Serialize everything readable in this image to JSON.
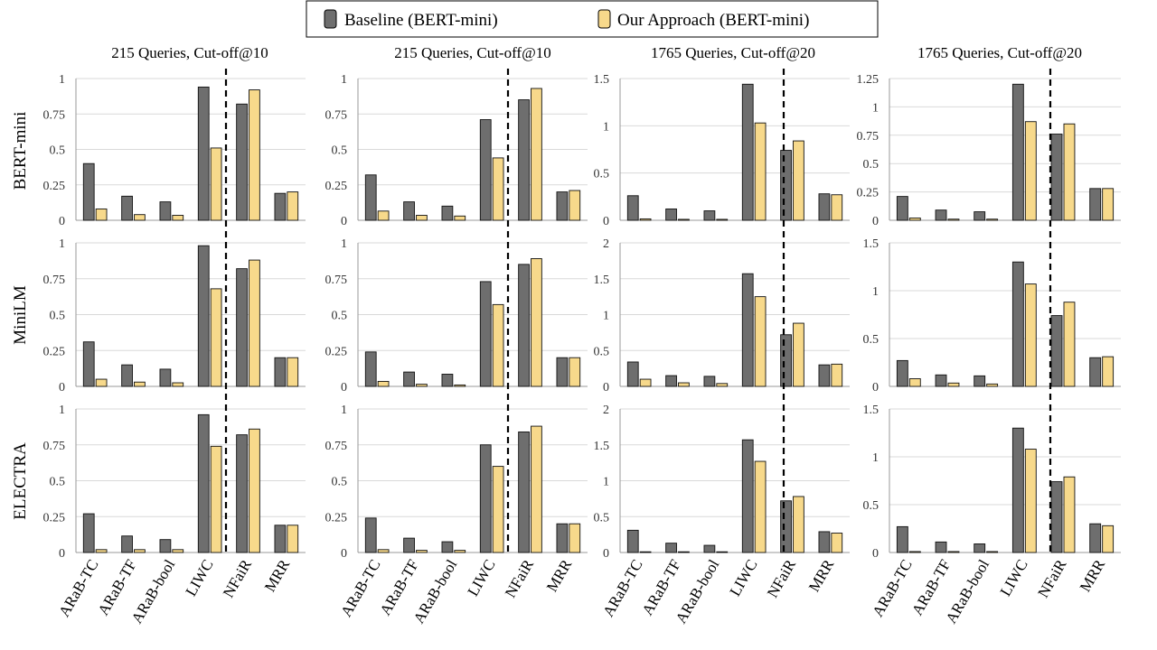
{
  "legend": {
    "items": [
      {
        "label": "Baseline (BERT-mini)",
        "color": "#6e6e6e"
      },
      {
        "label": "Our Approach (BERT-mini)",
        "color": "#f7d98b"
      }
    ]
  },
  "categories": [
    "ARaB-TC",
    "ARaB-TF",
    "ARaB-bool",
    "LIWC",
    "NFaiR",
    "MRR"
  ],
  "column_titles": [
    "215 Queries, Cut-off@10",
    "215 Queries, Cut-off@10",
    "1765 Queries, Cut-off@20",
    "1765 Queries, Cut-off@20"
  ],
  "row_labels": [
    "BERT-mini",
    "MiniLM",
    "ELECTRA"
  ],
  "colors": {
    "baseline": "#6e6e6e",
    "ours": "#f7d98b",
    "grid": "#d9d9d9",
    "axis": "#999999"
  },
  "chart_data": [
    {
      "type": "bar",
      "row": "BERT-mini",
      "column": "215 Queries, Cut-off@10",
      "ylim": [
        0,
        1
      ],
      "yticks": [
        "0",
        "0.25",
        "0.5",
        "0.75",
        "1"
      ],
      "series": [
        {
          "name": "Baseline (BERT-mini)",
          "values": [
            0.4,
            0.17,
            0.13,
            0.94,
            0.82,
            0.19
          ]
        },
        {
          "name": "Our Approach (BERT-mini)",
          "values": [
            0.08,
            0.04,
            0.035,
            0.51,
            0.92,
            0.2
          ]
        }
      ]
    },
    {
      "type": "bar",
      "row": "BERT-mini",
      "column": "215 Queries, Cut-off@10",
      "ylim": [
        0,
        1
      ],
      "yticks": [
        "0",
        "0.25",
        "0.5",
        "0.75",
        "1"
      ],
      "series": [
        {
          "name": "Baseline (BERT-mini)",
          "values": [
            0.32,
            0.13,
            0.1,
            0.71,
            0.85,
            0.2
          ]
        },
        {
          "name": "Our Approach (BERT-mini)",
          "values": [
            0.065,
            0.035,
            0.03,
            0.44,
            0.93,
            0.21
          ]
        }
      ]
    },
    {
      "type": "bar",
      "row": "BERT-mini",
      "column": "1765 Queries, Cut-off@20",
      "ylim": [
        0,
        1.5
      ],
      "yticks": [
        "0",
        "0.5",
        "1",
        "1.5"
      ],
      "series": [
        {
          "name": "Baseline (BERT-mini)",
          "values": [
            0.26,
            0.12,
            0.1,
            1.44,
            0.74,
            0.28
          ]
        },
        {
          "name": "Our Approach (BERT-mini)",
          "values": [
            0.015,
            0.01,
            0.01,
            1.03,
            0.84,
            0.27
          ]
        }
      ]
    },
    {
      "type": "bar",
      "row": "BERT-mini",
      "column": "1765 Queries, Cut-off@20",
      "ylim": [
        0,
        1.25
      ],
      "yticks": [
        "0",
        "0.25",
        "0.5",
        "0.75",
        "1",
        "1.25"
      ],
      "series": [
        {
          "name": "Baseline (BERT-mini)",
          "values": [
            0.21,
            0.09,
            0.075,
            1.2,
            0.76,
            0.28
          ]
        },
        {
          "name": "Our Approach (BERT-mini)",
          "values": [
            0.02,
            0.01,
            0.01,
            0.87,
            0.85,
            0.28
          ]
        }
      ]
    },
    {
      "type": "bar",
      "row": "MiniLM",
      "column": "215 Queries, Cut-off@10",
      "ylim": [
        0,
        1
      ],
      "yticks": [
        "0",
        "0.25",
        "0.5",
        "0.75",
        "1"
      ],
      "series": [
        {
          "name": "Baseline (BERT-mini)",
          "values": [
            0.31,
            0.15,
            0.12,
            0.98,
            0.82,
            0.2
          ]
        },
        {
          "name": "Our Approach (BERT-mini)",
          "values": [
            0.05,
            0.03,
            0.025,
            0.68,
            0.88,
            0.2
          ]
        }
      ]
    },
    {
      "type": "bar",
      "row": "MiniLM",
      "column": "215 Queries, Cut-off@10",
      "ylim": [
        0,
        1
      ],
      "yticks": [
        "0",
        "0.25",
        "0.5",
        "0.75",
        "1"
      ],
      "series": [
        {
          "name": "Baseline (BERT-mini)",
          "values": [
            0.24,
            0.1,
            0.085,
            0.73,
            0.85,
            0.2
          ]
        },
        {
          "name": "Our Approach (BERT-mini)",
          "values": [
            0.035,
            0.015,
            0.01,
            0.57,
            0.89,
            0.2
          ]
        }
      ]
    },
    {
      "type": "bar",
      "row": "MiniLM",
      "column": "1765 Queries, Cut-off@20",
      "ylim": [
        0,
        2
      ],
      "yticks": [
        "0",
        "0.5",
        "1",
        "1.5",
        "2"
      ],
      "series": [
        {
          "name": "Baseline (BERT-mini)",
          "values": [
            0.34,
            0.15,
            0.14,
            1.57,
            0.72,
            0.3
          ]
        },
        {
          "name": "Our Approach (BERT-mini)",
          "values": [
            0.1,
            0.05,
            0.04,
            1.25,
            0.88,
            0.31
          ]
        }
      ]
    },
    {
      "type": "bar",
      "row": "MiniLM",
      "column": "1765 Queries, Cut-off@20",
      "ylim": [
        0,
        1.5
      ],
      "yticks": [
        "0",
        "0.5",
        "1",
        "1.5"
      ],
      "series": [
        {
          "name": "Baseline (BERT-mini)",
          "values": [
            0.27,
            0.12,
            0.11,
            1.3,
            0.74,
            0.3
          ]
        },
        {
          "name": "Our Approach (BERT-mini)",
          "values": [
            0.08,
            0.035,
            0.025,
            1.07,
            0.88,
            0.31
          ]
        }
      ]
    },
    {
      "type": "bar",
      "row": "ELECTRA",
      "column": "215 Queries, Cut-off@10",
      "ylim": [
        0,
        1
      ],
      "yticks": [
        "0",
        "0.25",
        "0.5",
        "0.75",
        "1"
      ],
      "series": [
        {
          "name": "Baseline (BERT-mini)",
          "values": [
            0.27,
            0.115,
            0.09,
            0.96,
            0.82,
            0.19
          ]
        },
        {
          "name": "Our Approach (BERT-mini)",
          "values": [
            0.02,
            0.02,
            0.02,
            0.74,
            0.86,
            0.19
          ]
        }
      ]
    },
    {
      "type": "bar",
      "row": "ELECTRA",
      "column": "215 Queries, Cut-off@10",
      "ylim": [
        0,
        1
      ],
      "yticks": [
        "0",
        "0.25",
        "0.5",
        "0.75",
        "1"
      ],
      "series": [
        {
          "name": "Baseline (BERT-mini)",
          "values": [
            0.24,
            0.1,
            0.075,
            0.75,
            0.84,
            0.2
          ]
        },
        {
          "name": "Our Approach (BERT-mini)",
          "values": [
            0.02,
            0.015,
            0.015,
            0.6,
            0.88,
            0.2
          ]
        }
      ]
    },
    {
      "type": "bar",
      "row": "ELECTRA",
      "column": "1765 Queries, Cut-off@20",
      "ylim": [
        0,
        2
      ],
      "yticks": [
        "0",
        "0.5",
        "1",
        "1.5",
        "2"
      ],
      "series": [
        {
          "name": "Baseline (BERT-mini)",
          "values": [
            0.31,
            0.13,
            0.1,
            1.57,
            0.72,
            0.29
          ]
        },
        {
          "name": "Our Approach (BERT-mini)",
          "values": [
            0.01,
            0.01,
            0.01,
            1.27,
            0.78,
            0.27
          ]
        }
      ]
    },
    {
      "type": "bar",
      "row": "ELECTRA",
      "column": "1765 Queries, Cut-off@20",
      "ylim": [
        0,
        1.5
      ],
      "yticks": [
        "0",
        "0.5",
        "1",
        "1.5"
      ],
      "series": [
        {
          "name": "Baseline (BERT-mini)",
          "values": [
            0.27,
            0.11,
            0.09,
            1.3,
            0.74,
            0.3
          ]
        },
        {
          "name": "Our Approach (BERT-mini)",
          "values": [
            0.01,
            0.01,
            0.01,
            1.08,
            0.79,
            0.28
          ]
        }
      ]
    }
  ]
}
